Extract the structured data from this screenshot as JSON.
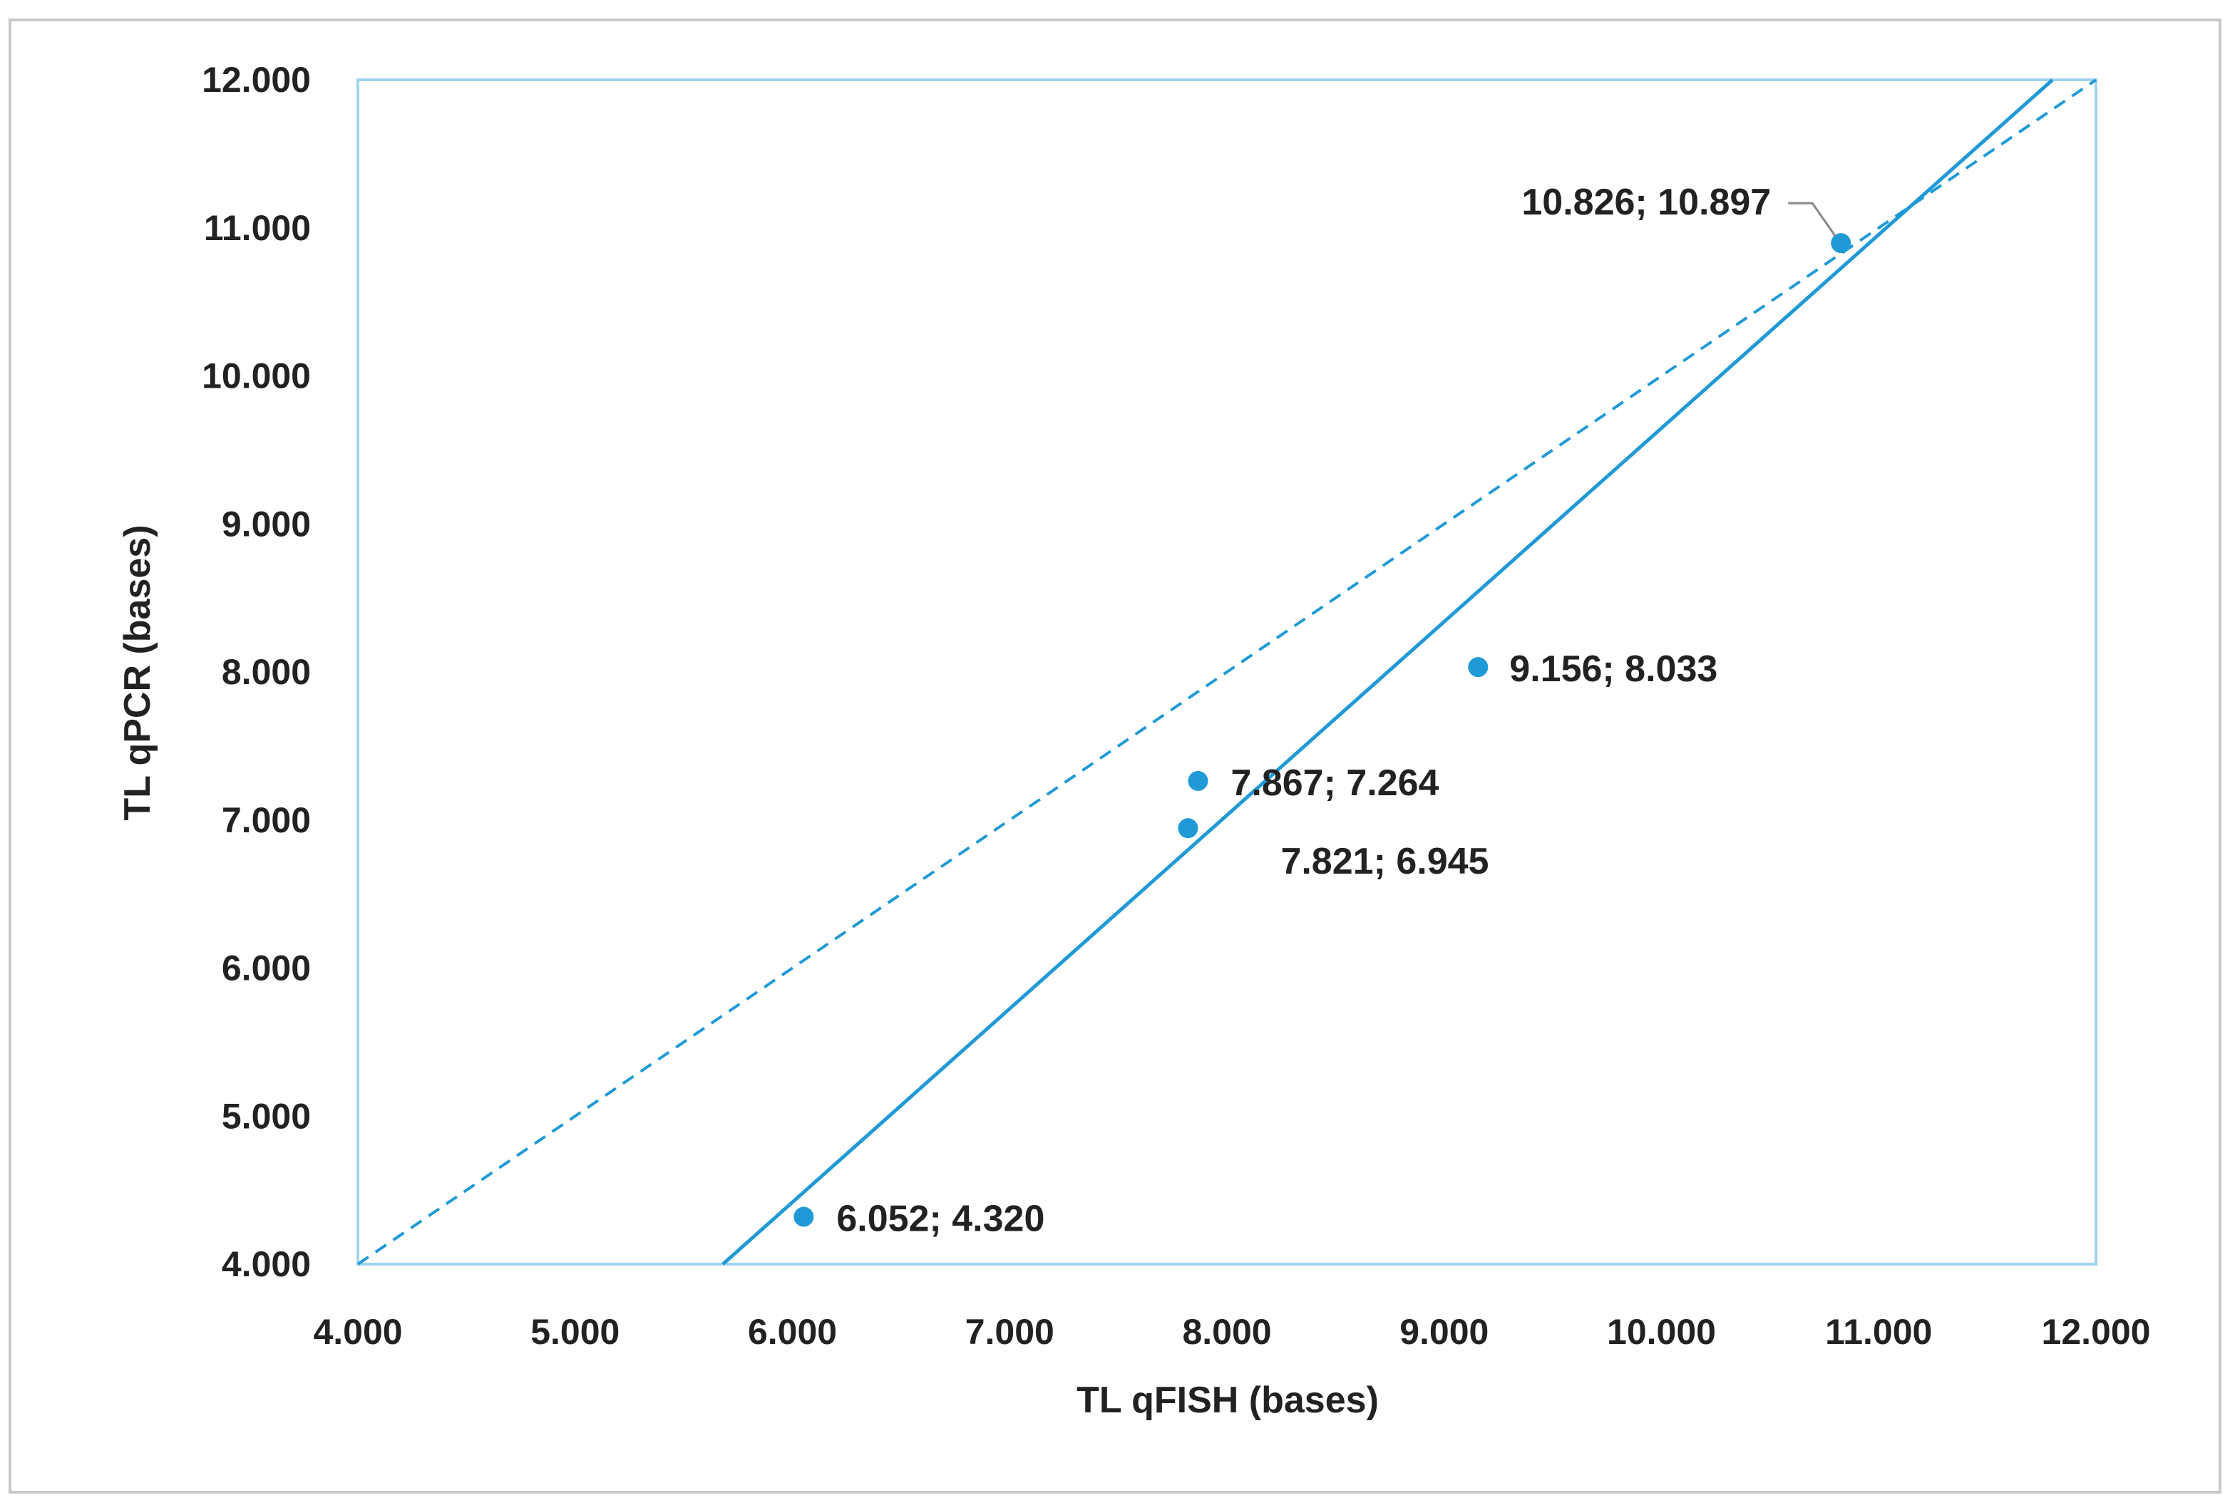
{
  "chart_data": {
    "type": "scatter",
    "xlabel": "TL qFISH  (bases)",
    "ylabel": "TL qPCR (bases)",
    "xlim": [
      4000,
      12000
    ],
    "ylim": [
      4000,
      12000
    ],
    "x_ticks": [
      "4.000",
      "5.000",
      "6.000",
      "7.000",
      "8.000",
      "9.000",
      "10.000",
      "11.000",
      "12.000"
    ],
    "y_ticks": [
      "4.000",
      "5.000",
      "6.000",
      "7.000",
      "8.000",
      "9.000",
      "10.000",
      "11.000",
      "12.000"
    ],
    "grid": false,
    "points": [
      {
        "x": 6052,
        "y": 4320,
        "label": "6.052; 4.320"
      },
      {
        "x": 7821,
        "y": 6945,
        "label": "7.821; 6.945"
      },
      {
        "x": 7867,
        "y": 7264,
        "label": "7.867; 7.264"
      },
      {
        "x": 9156,
        "y": 8033,
        "label": "9.156; 8.033"
      },
      {
        "x": 10826,
        "y": 10897,
        "label": "10.826; 10.897"
      }
    ],
    "lines": [
      {
        "style": "solid",
        "x": [
          5680,
          11800
        ],
        "y": [
          4000,
          12000
        ]
      },
      {
        "style": "dashed",
        "x": [
          4000,
          12000
        ],
        "y": [
          4000,
          12000
        ]
      }
    ],
    "colors": {
      "series": "#1f9ad6",
      "frame": "#9fd3ef",
      "outer_border": "#c8c8c8"
    }
  }
}
